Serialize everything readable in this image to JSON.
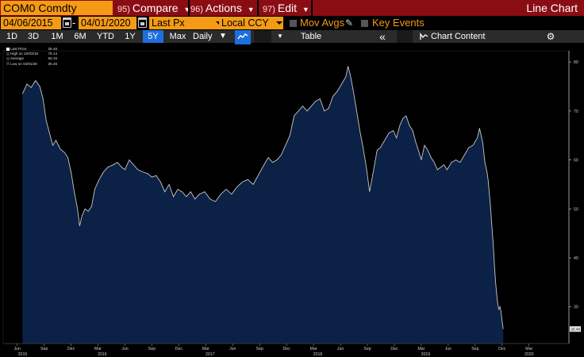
{
  "header": {
    "ticker": "COM0 Comdty",
    "menus": [
      {
        "num": "95)",
        "label": "Compare",
        "arrow": true
      },
      {
        "num": "96)",
        "label": "Actions",
        "arrow": true
      },
      {
        "num": "97)",
        "label": "Edit",
        "arrow": true
      }
    ],
    "title": "Line Chart",
    "bar_color": "#8b0d14",
    "accent": "#f59a14"
  },
  "settings": {
    "start_date": "04/06/2015",
    "separator": "-",
    "end_date": "04/01/2020",
    "field": "Last Px",
    "currency": "Local CCY",
    "mov_avgs_label": "Mov Avgs",
    "key_events_label": "Key Events"
  },
  "toolbar": {
    "ranges": [
      "1D",
      "3D",
      "1M",
      "6M",
      "YTD",
      "1Y",
      "5Y",
      "Max"
    ],
    "active_range": "5Y",
    "frequency": "Daily",
    "table_label": "Table",
    "chart_content_label": "Chart Content",
    "active_color": "#1d6fe0"
  },
  "legend": {
    "rows": [
      {
        "label": "Last Price",
        "value": "25.46"
      },
      {
        "label": "High on 10/03/18",
        "value": "79.14"
      },
      {
        "label": "Average",
        "value": "60.16"
      },
      {
        "label": "Low on 04/01/20",
        "value": "25.46"
      }
    ]
  },
  "last_label": "25.46",
  "chart_data": {
    "type": "area",
    "title": "",
    "xlabel": "",
    "ylabel": "",
    "ylim": [
      22.5,
      82.3
    ],
    "y_ticks": [
      30,
      40,
      50,
      60,
      70,
      80
    ],
    "x_ticks": [
      {
        "t": 2015.21,
        "label": "Jun"
      },
      {
        "t": 2015.46,
        "label": "Sep"
      },
      {
        "t": 2015.71,
        "label": "Dec"
      },
      {
        "t": 2015.96,
        "label": "Mar"
      },
      {
        "t": 2016.21,
        "label": "Jun"
      },
      {
        "t": 2016.46,
        "label": "Sep"
      },
      {
        "t": 2016.71,
        "label": "Dec"
      },
      {
        "t": 2016.96,
        "label": "Mar"
      },
      {
        "t": 2017.21,
        "label": "Jun"
      },
      {
        "t": 2017.46,
        "label": "Sep"
      },
      {
        "t": 2017.71,
        "label": "Dec"
      },
      {
        "t": 2017.96,
        "label": "Mar"
      },
      {
        "t": 2018.21,
        "label": "Jun"
      },
      {
        "t": 2018.46,
        "label": "Sep"
      },
      {
        "t": 2018.71,
        "label": "Dec"
      },
      {
        "t": 2018.96,
        "label": "Mar"
      },
      {
        "t": 2019.21,
        "label": "Jun"
      },
      {
        "t": 2019.46,
        "label": "Sep"
      },
      {
        "t": 2019.71,
        "label": "Dec"
      },
      {
        "t": 2019.96,
        "label": "Mar"
      }
    ],
    "year_ticks": [
      {
        "t": 2015.26,
        "label": "2015"
      },
      {
        "t": 2016.0,
        "label": "2016"
      },
      {
        "t": 2017.0,
        "label": "2017"
      },
      {
        "t": 2018.0,
        "label": "2018"
      },
      {
        "t": 2019.0,
        "label": "2019"
      },
      {
        "t": 2019.96,
        "label": "2020"
      }
    ],
    "x_range": [
      2015.08,
      2020.33
    ],
    "series": [
      {
        "color": "#c8c8c8",
        "fill": "#0b2145",
        "points": [
          [
            2015.26,
            73.5
          ],
          [
            2015.3,
            75.5
          ],
          [
            2015.34,
            74.8
          ],
          [
            2015.38,
            76.2
          ],
          [
            2015.42,
            75.0
          ],
          [
            2015.45,
            72.5
          ],
          [
            2015.48,
            68.0
          ],
          [
            2015.51,
            65.5
          ],
          [
            2015.54,
            63.0
          ],
          [
            2015.57,
            64.0
          ],
          [
            2015.61,
            62.2
          ],
          [
            2015.65,
            61.5
          ],
          [
            2015.68,
            60.5
          ],
          [
            2015.71,
            57.5
          ],
          [
            2015.74,
            53.5
          ],
          [
            2015.77,
            50.0
          ],
          [
            2015.79,
            46.5
          ],
          [
            2015.81,
            48.5
          ],
          [
            2015.84,
            50.0
          ],
          [
            2015.87,
            49.5
          ],
          [
            2015.9,
            50.5
          ],
          [
            2015.93,
            54.0
          ],
          [
            2015.97,
            56.0
          ],
          [
            2016.01,
            57.5
          ],
          [
            2016.05,
            58.5
          ],
          [
            2016.1,
            59.0
          ],
          [
            2016.14,
            59.5
          ],
          [
            2016.18,
            58.5
          ],
          [
            2016.21,
            58.0
          ],
          [
            2016.25,
            60.0
          ],
          [
            2016.29,
            59.0
          ],
          [
            2016.33,
            58.0
          ],
          [
            2016.38,
            57.5
          ],
          [
            2016.42,
            57.2
          ],
          [
            2016.46,
            56.5
          ],
          [
            2016.5,
            56.8
          ],
          [
            2016.54,
            55.5
          ],
          [
            2016.58,
            53.5
          ],
          [
            2016.62,
            55.0
          ],
          [
            2016.66,
            52.5
          ],
          [
            2016.7,
            54.0
          ],
          [
            2016.74,
            53.5
          ],
          [
            2016.78,
            52.5
          ],
          [
            2016.82,
            53.5
          ],
          [
            2016.86,
            52.0
          ],
          [
            2016.9,
            53.0
          ],
          [
            2016.95,
            53.5
          ],
          [
            2017.0,
            52.0
          ],
          [
            2017.05,
            51.5
          ],
          [
            2017.1,
            53.0
          ],
          [
            2017.15,
            54.0
          ],
          [
            2017.2,
            53.0
          ],
          [
            2017.25,
            54.5
          ],
          [
            2017.3,
            55.5
          ],
          [
            2017.35,
            56.0
          ],
          [
            2017.4,
            55.0
          ],
          [
            2017.45,
            57.0
          ],
          [
            2017.5,
            59.0
          ],
          [
            2017.54,
            60.5
          ],
          [
            2017.58,
            59.5
          ],
          [
            2017.62,
            60.0
          ],
          [
            2017.66,
            61.0
          ],
          [
            2017.7,
            63.0
          ],
          [
            2017.74,
            65.0
          ],
          [
            2017.78,
            69.0
          ],
          [
            2017.82,
            70.0
          ],
          [
            2017.86,
            71.0
          ],
          [
            2017.9,
            70.0
          ],
          [
            2017.94,
            71.0
          ],
          [
            2017.98,
            72.0
          ],
          [
            2018.02,
            72.5
          ],
          [
            2018.06,
            70.0
          ],
          [
            2018.1,
            70.5
          ],
          [
            2018.14,
            73.0
          ],
          [
            2018.18,
            74.0
          ],
          [
            2018.22,
            75.5
          ],
          [
            2018.26,
            77.0
          ],
          [
            2018.28,
            79.14
          ],
          [
            2018.3,
            77.5
          ],
          [
            2018.33,
            74.0
          ],
          [
            2018.36,
            70.0
          ],
          [
            2018.39,
            66.0
          ],
          [
            2018.42,
            62.5
          ],
          [
            2018.45,
            58.5
          ],
          [
            2018.48,
            53.5
          ],
          [
            2018.51,
            57.0
          ],
          [
            2018.55,
            62.0
          ],
          [
            2018.58,
            62.5
          ],
          [
            2018.62,
            64.0
          ],
          [
            2018.66,
            65.5
          ],
          [
            2018.7,
            66.0
          ],
          [
            2018.73,
            64.5
          ],
          [
            2018.76,
            67.0
          ],
          [
            2018.79,
            68.5
          ],
          [
            2018.82,
            69.0
          ],
          [
            2018.85,
            67.0
          ],
          [
            2018.88,
            66.0
          ],
          [
            2018.91,
            63.5
          ],
          [
            2018.94,
            61.5
          ],
          [
            2018.96,
            60.0
          ],
          [
            2018.99,
            63.0
          ],
          [
            2019.02,
            62.0
          ],
          [
            2019.05,
            60.5
          ],
          [
            2019.08,
            59.5
          ],
          [
            2019.11,
            58.0
          ],
          [
            2019.14,
            58.5
          ],
          [
            2019.17,
            59.0
          ],
          [
            2019.2,
            58.0
          ],
          [
            2019.24,
            59.5
          ],
          [
            2019.28,
            60.0
          ],
          [
            2019.32,
            59.5
          ],
          [
            2019.36,
            61.0
          ],
          [
            2019.4,
            62.5
          ],
          [
            2019.44,
            63.0
          ],
          [
            2019.48,
            64.5
          ],
          [
            2019.5,
            66.5
          ],
          [
            2019.53,
            63.5
          ],
          [
            2019.55,
            59.5
          ],
          [
            2019.57,
            57.5
          ],
          [
            2019.58,
            56.0
          ],
          [
            2019.59,
            53.5
          ],
          [
            2019.6,
            51.0
          ],
          [
            2019.61,
            48.0
          ],
          [
            2019.62,
            45.0
          ],
          [
            2019.63,
            42.0
          ],
          [
            2019.64,
            38.0
          ],
          [
            2019.65,
            35.0
          ],
          [
            2019.66,
            32.5
          ],
          [
            2019.67,
            30.5
          ],
          [
            2019.68,
            29.5
          ],
          [
            2019.69,
            30.0
          ],
          [
            2019.7,
            29.0
          ],
          [
            2019.71,
            27.0
          ],
          [
            2019.72,
            25.46
          ]
        ]
      }
    ]
  }
}
